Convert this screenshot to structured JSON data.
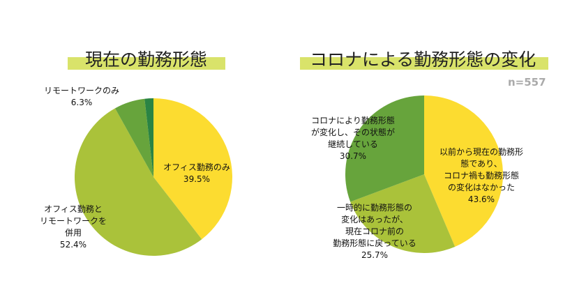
{
  "chart_data": [
    {
      "type": "pie",
      "title": "現在の勤務形態",
      "slices": [
        {
          "label": "オフィス勤務のみ",
          "value": 39.5,
          "display": "39.5%",
          "color": "#fcdc30"
        },
        {
          "label": "オフィス勤務と\nリモートワークを\n併用",
          "value": 52.4,
          "display": "52.4%",
          "color": "#aac23a"
        },
        {
          "label": "リモートワークのみ",
          "value": 6.3,
          "display": "6.3%",
          "color": "#67a43c"
        },
        {
          "label": "",
          "value": 1.8,
          "display": "",
          "color": "#2a8444"
        }
      ]
    },
    {
      "type": "pie",
      "title": "コロナによる勤務形態の変化",
      "note": "n=557",
      "slices": [
        {
          "label": "以前から現在の勤務形\n態であり、\nコロナ禍も勤務形態\nの変化はなかった",
          "value": 43.6,
          "display": "43.6%",
          "color": "#fcdc30"
        },
        {
          "label": "一時的に勤務形態の\n変化はあったが、\n現在コロナ前の\n勤務形態に戻っている",
          "value": 25.7,
          "display": "25.7%",
          "color": "#aac23a"
        },
        {
          "label": "コロナにより勤務形態\nが変化し、その状態が\n継続している",
          "value": 30.7,
          "display": "30.7%",
          "color": "#67a43c"
        }
      ]
    }
  ]
}
